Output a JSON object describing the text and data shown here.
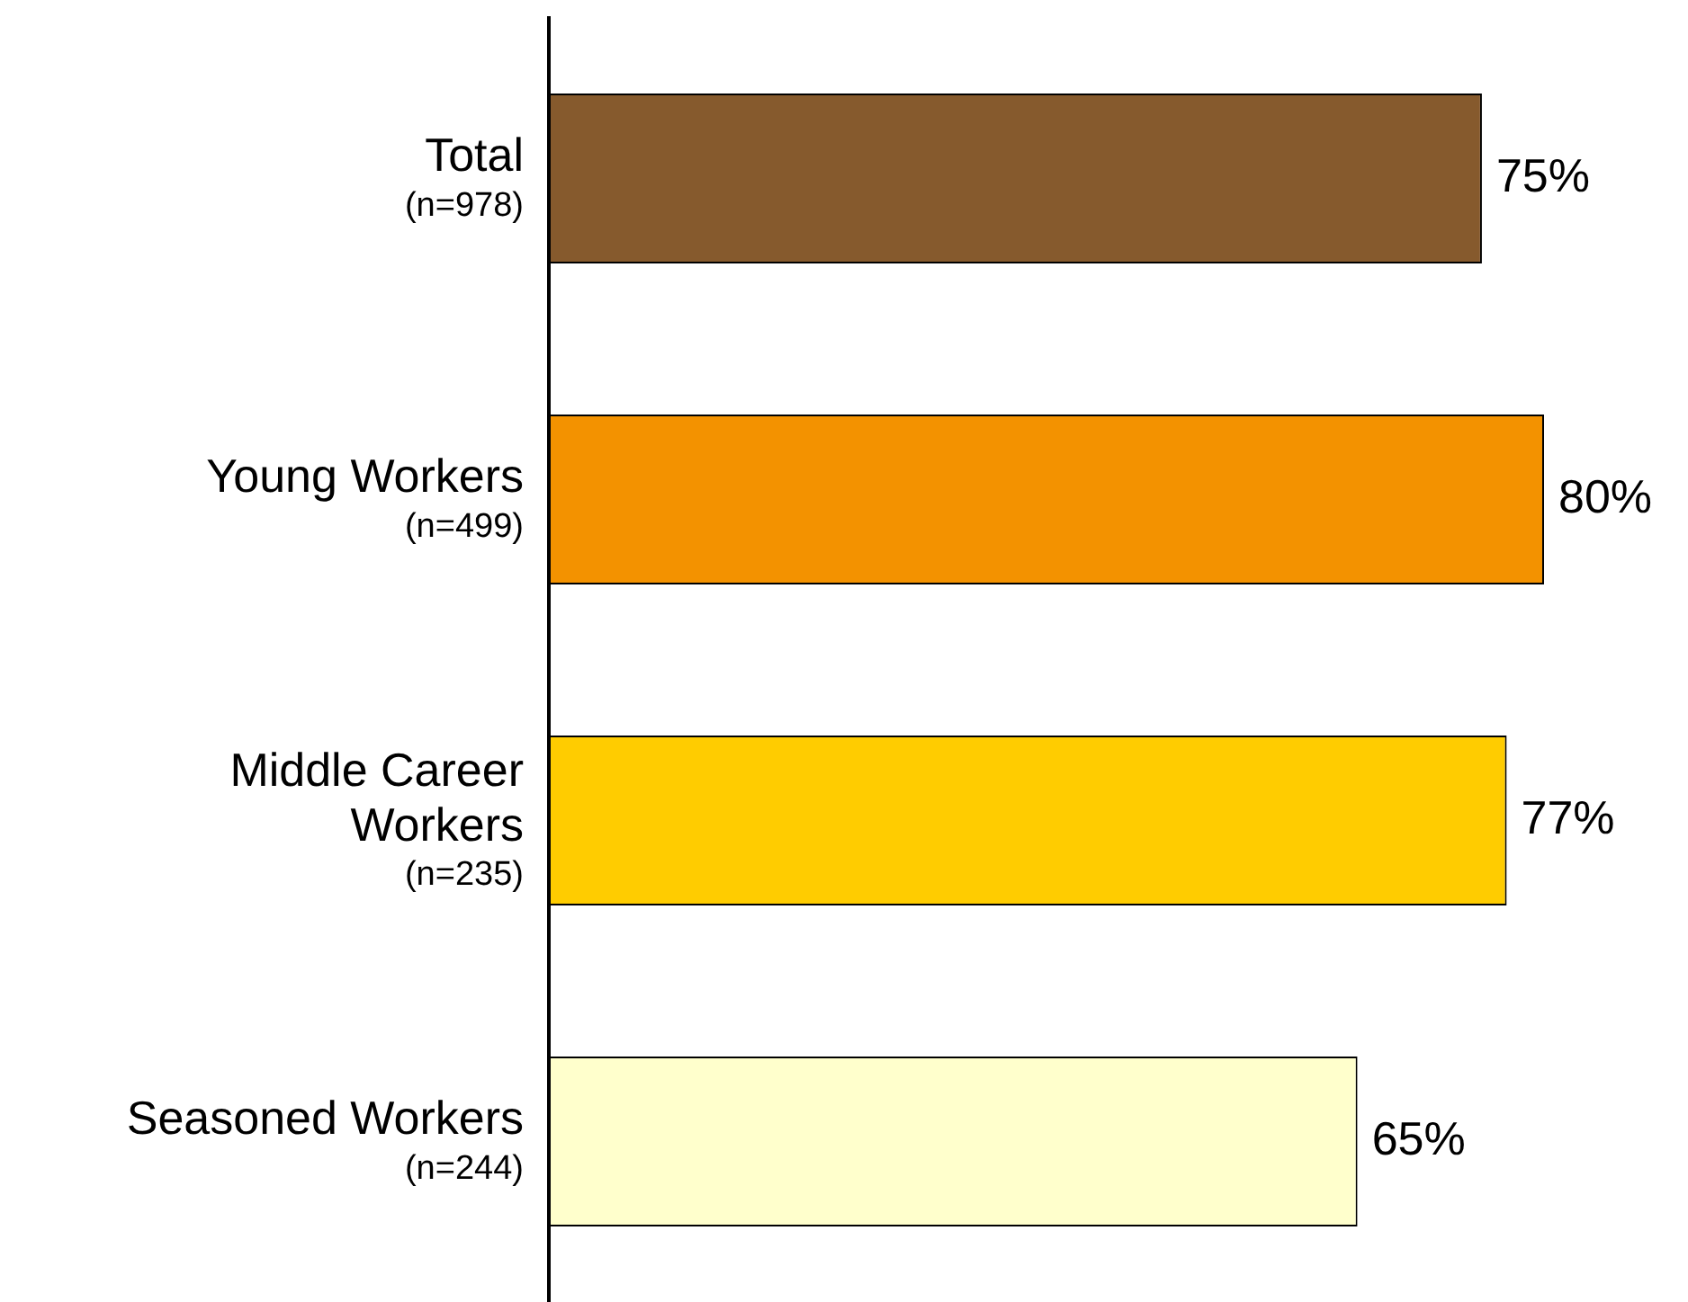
{
  "chart_data": {
    "type": "bar",
    "orientation": "horizontal",
    "categories": [
      "Total\n(n=978)",
      "Young Workers\n(n=499)",
      "Middle Career\nWorkers\n(n=235)",
      "Seasoned Workers\n(n=244)"
    ],
    "values": [
      75,
      80,
      77,
      65
    ],
    "colors": [
      "#865a2d",
      "#f39200",
      "#ffcc00",
      "#ffffcc"
    ],
    "value_labels": [
      "75%",
      "80%",
      "77%",
      "65%"
    ],
    "grid": false,
    "legend": false
  }
}
